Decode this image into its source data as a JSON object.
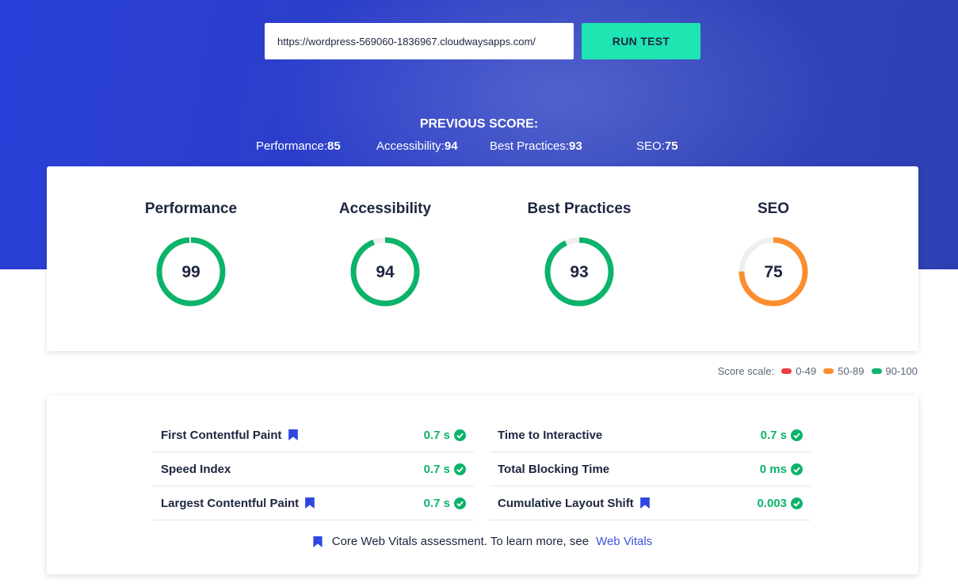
{
  "test_form": {
    "url_value": "https://wordpress-569060-1836967.cloudwaysapps.com/",
    "run_label": "RUN TEST"
  },
  "previous": {
    "title": "PREVIOUS SCORE:",
    "items": [
      {
        "label": "Performance:",
        "value": "85"
      },
      {
        "label": "Accessibility:",
        "value": "94"
      },
      {
        "label": "Best Practices:",
        "value": "93"
      },
      {
        "label": "SEO:",
        "value": "75"
      }
    ]
  },
  "gauges": [
    {
      "title": "Performance",
      "score": 99,
      "color": "#0cb36a"
    },
    {
      "title": "Accessibility",
      "score": 94,
      "color": "#0cb36a"
    },
    {
      "title": "Best Practices",
      "score": 93,
      "color": "#0cb36a"
    },
    {
      "title": "SEO",
      "score": 75,
      "color": "#fb8e2e"
    }
  ],
  "scale": {
    "label": "Score scale:",
    "ranges": [
      {
        "label": "0-49",
        "color": "#ef3b3f"
      },
      {
        "label": "50-89",
        "color": "#fb8e2e"
      },
      {
        "label": "90-100",
        "color": "#0cb36a"
      }
    ]
  },
  "metrics": {
    "left": [
      {
        "name": "First Contentful Paint",
        "value": "0.7 s",
        "core": true
      },
      {
        "name": "Speed Index",
        "value": "0.7 s",
        "core": false
      },
      {
        "name": "Largest Contentful Paint",
        "value": "0.7 s",
        "core": true
      }
    ],
    "right": [
      {
        "name": "Time to Interactive",
        "value": "0.7 s",
        "core": false
      },
      {
        "name": "Total Blocking Time",
        "value": "0 ms",
        "core": false
      },
      {
        "name": "Cumulative Layout Shift",
        "value": "0.003",
        "core": true
      }
    ]
  },
  "cwv_note": {
    "text": "Core Web Vitals assessment. To learn more, see",
    "link": "Web Vitals"
  },
  "colors": {
    "accent_button": "#1ee5b1",
    "good": "#0cb36a",
    "average": "#fb8e2e",
    "poor": "#ef3b3f",
    "link": "#3d53e0",
    "track": "#efefef"
  }
}
